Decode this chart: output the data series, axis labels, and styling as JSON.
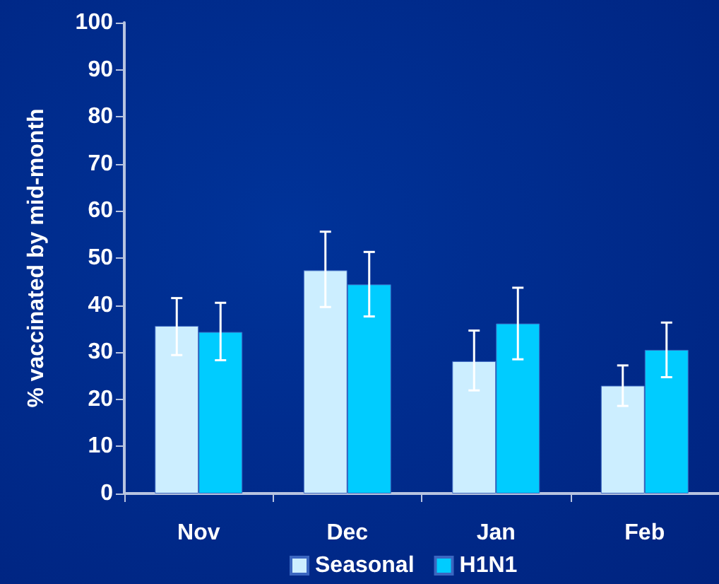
{
  "chart_data": {
    "type": "bar",
    "ylabel": "% vaccinated by mid-month",
    "categories": [
      "Nov",
      "Dec",
      "Jan",
      "Feb"
    ],
    "series": [
      {
        "name": "Seasonal",
        "color": "#cceeff",
        "values": [
          35.6,
          47.4,
          28.1,
          22.9
        ],
        "errors": [
          [
            29.4,
            41.5
          ],
          [
            39.6,
            55.6
          ],
          [
            21.9,
            34.6
          ],
          [
            18.6,
            27.2
          ]
        ]
      },
      {
        "name": "H1N1",
        "color": "#00ccff",
        "values": [
          34.3,
          44.4,
          36.1,
          30.5
        ],
        "errors": [
          [
            28.3,
            40.5
          ],
          [
            37.6,
            51.3
          ],
          [
            28.5,
            43.7
          ],
          [
            24.7,
            36.3
          ]
        ]
      }
    ],
    "ylim": [
      0,
      100
    ],
    "yticks": [
      0,
      10,
      20,
      30,
      40,
      50,
      60,
      70,
      80,
      90,
      100
    ],
    "grid": false,
    "legend": "bottom"
  }
}
